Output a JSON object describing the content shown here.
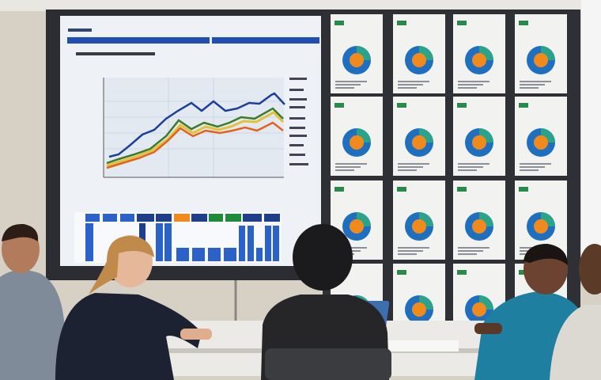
{
  "scene": {
    "description_tags": [
      "meeting-room",
      "projection-screen",
      "line-chart",
      "bar-chart",
      "pie-chart-board",
      "people-at-table"
    ],
    "colors": {
      "wall": "#d8d2c8",
      "screen_frame": "#2b2d33",
      "screen": "#eef2f6",
      "header_bar": "#1f4fb0",
      "series_blue": "#1d3f9a",
      "series_green": "#3d7a2a",
      "series_yellow": "#e2c23a",
      "series_orange": "#e2621e",
      "bar_blue": "#2a62c9",
      "pie_blue": "#1f6fc0",
      "pie_teal": "#2aa38a",
      "pie_orange": "#f08a1c",
      "table": "#eceae6"
    }
  }
}
